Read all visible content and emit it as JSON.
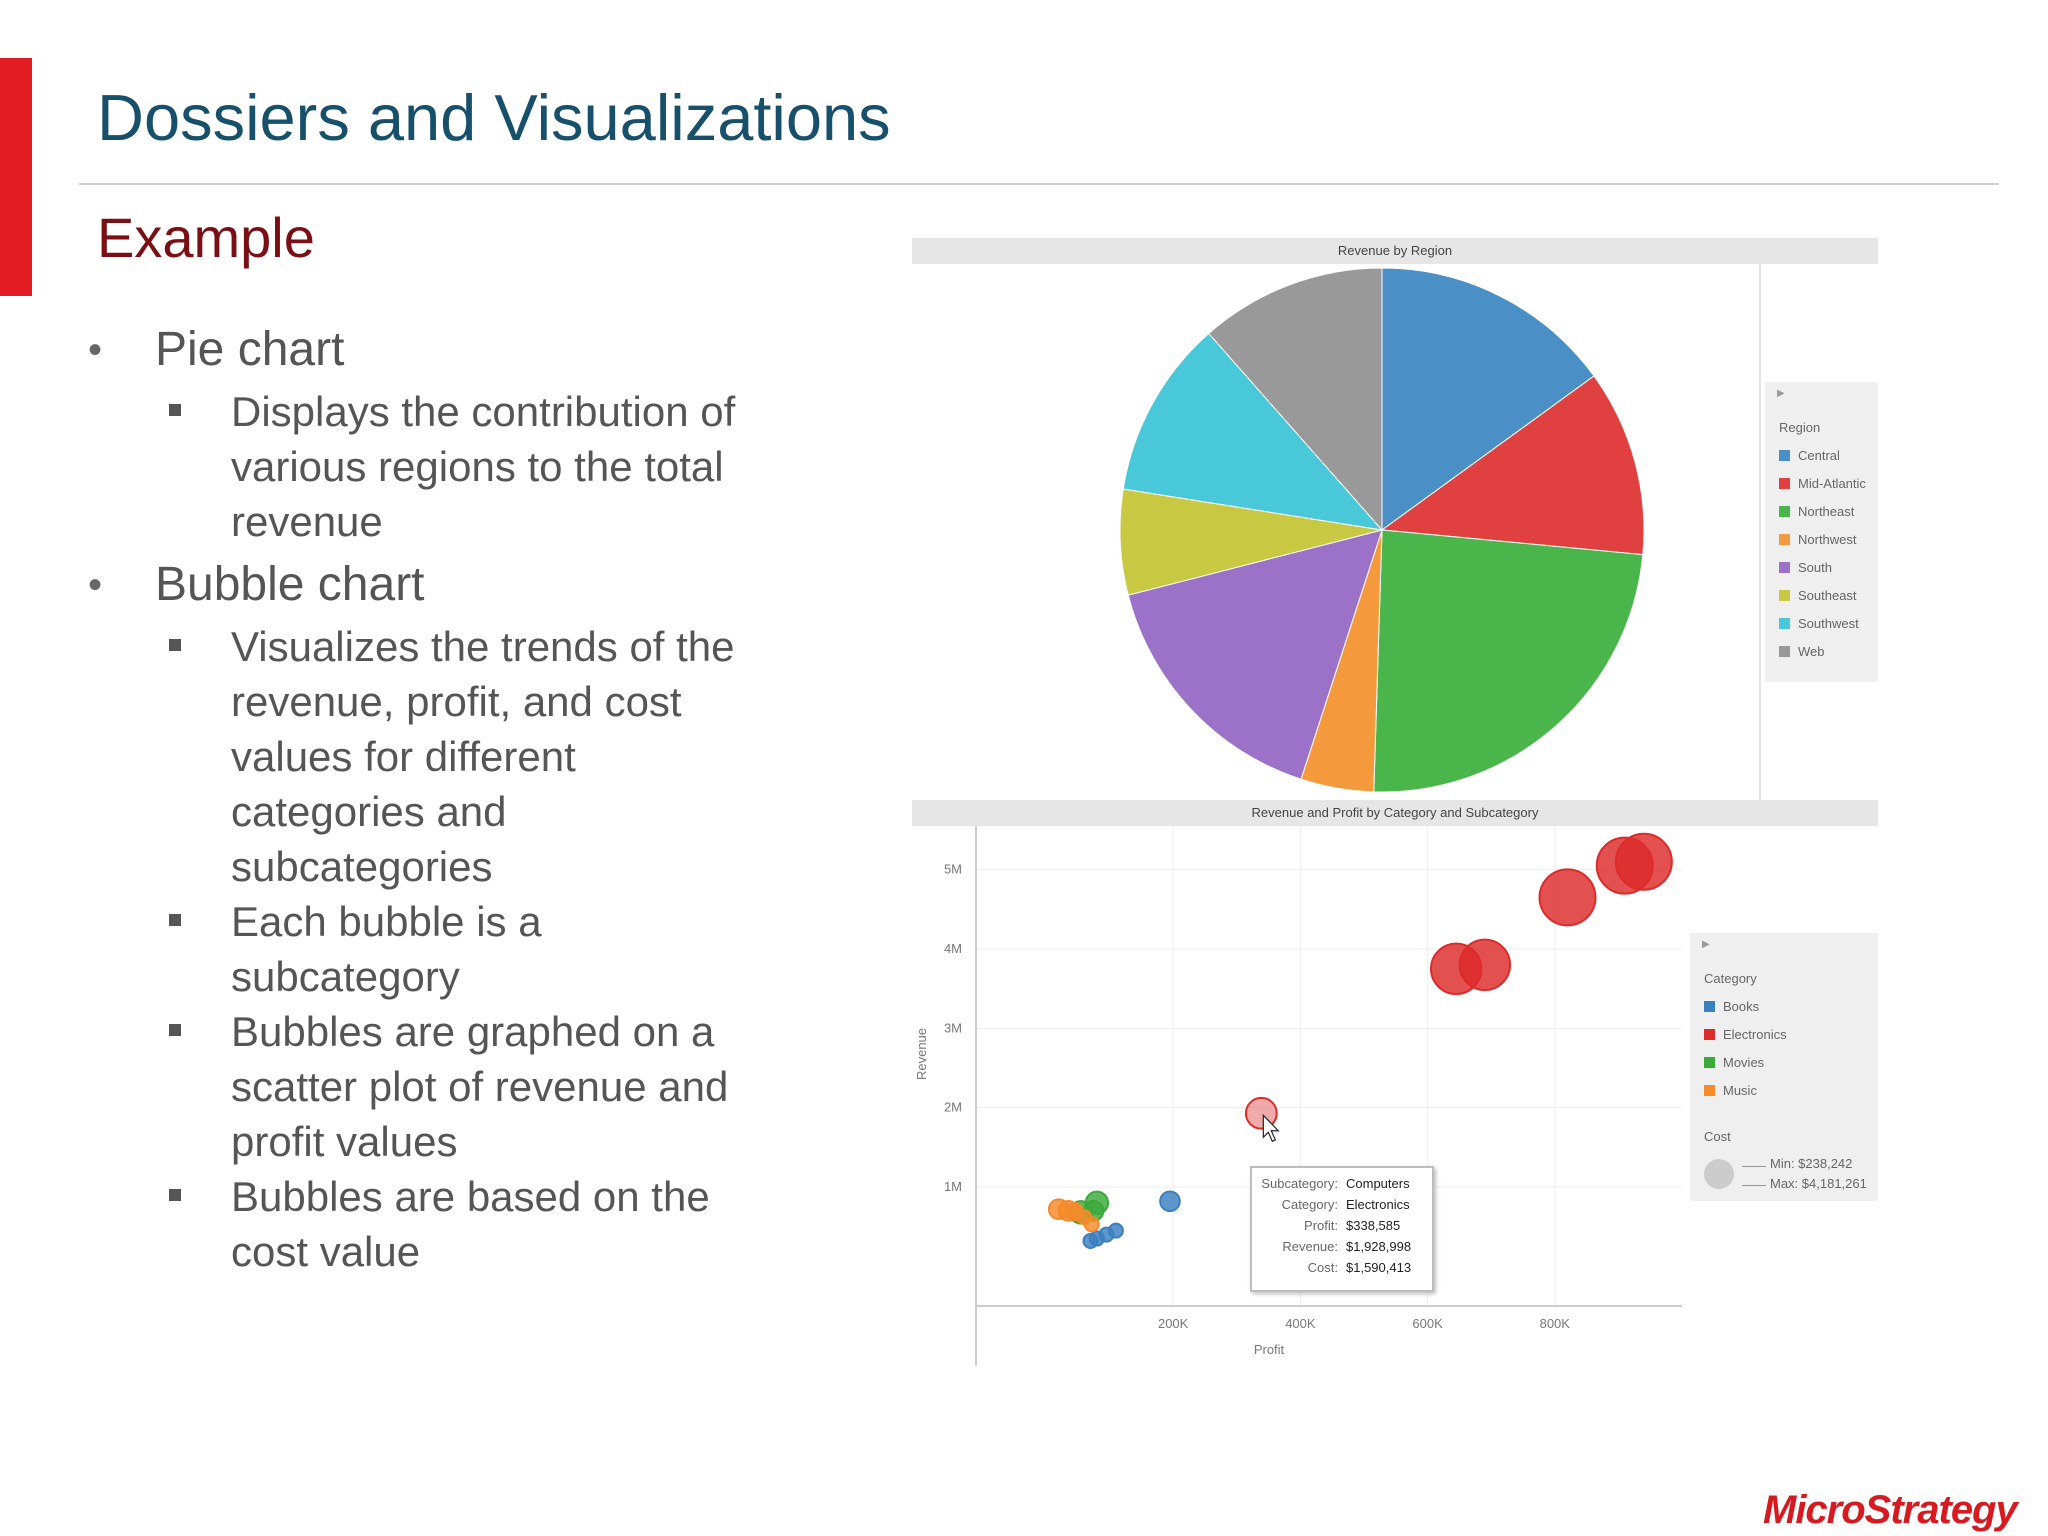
{
  "slide": {
    "title": "Dossiers and Visualizations",
    "subtitle": "Example",
    "accent_color": "#e31b23",
    "title_color": "#17506b",
    "subtitle_color": "#7a0f16"
  },
  "bullets": [
    {
      "text": "Pie chart",
      "subs": [
        "Displays the contribution of",
        "various regions to the total",
        "revenue"
      ]
    },
    {
      "text": "Bubble chart",
      "subs": [
        "Visualizes the trends of the",
        "revenue, profit, and cost",
        "values for different",
        "categories and",
        "subcategories"
      ]
    }
  ],
  "bullets_extra": [
    [
      "Each bubble is a",
      "subcategory"
    ],
    [
      "Bubbles are graphed on a",
      "scatter plot of revenue and",
      "profit values"
    ],
    [
      "Bubbles are based on the",
      "cost value"
    ]
  ],
  "chart_data": [
    {
      "type": "pie",
      "title": "Revenue by Region",
      "legend_title": "Region",
      "legend_placement": "right",
      "categories": [
        "Central",
        "Mid-Atlantic",
        "Northeast",
        "Northwest",
        "South",
        "Southeast",
        "Southwest",
        "Web"
      ],
      "values": [
        15.0,
        11.5,
        24.0,
        4.5,
        16.0,
        6.5,
        11.0,
        11.5
      ],
      "colors": [
        "#4a90c7",
        "#e04040",
        "#4ab54a",
        "#f59a3c",
        "#9b72c7",
        "#c8c842",
        "#48c8d8",
        "#999999"
      ]
    },
    {
      "type": "scatter",
      "title": "Revenue and Profit by Category and Subcategory",
      "xlabel": "Profit",
      "ylabel": "Revenue",
      "xlim": [
        -110000,
        1000000
      ],
      "ylim": [
        -500000,
        5550000
      ],
      "x_ticks": [
        200000,
        400000,
        600000,
        800000
      ],
      "x_tick_labels": [
        "200K",
        "400K",
        "600K",
        "800K"
      ],
      "y_ticks": [
        1000000,
        2000000,
        3000000,
        4000000,
        5000000
      ],
      "y_tick_labels": [
        "1M",
        "2M",
        "3M",
        "4M",
        "5M"
      ],
      "grid": true,
      "legend_title": "Category",
      "legend_placement": "right",
      "categories": [
        "Books",
        "Electronics",
        "Movies",
        "Music"
      ],
      "colors": {
        "Books": "#3a7fc0",
        "Electronics": "#dd2a2a",
        "Movies": "#3aaa3a",
        "Music": "#f58a2a"
      },
      "size_legend": {
        "title": "Cost",
        "min_label": "Min: $238,242",
        "max_label": "Max: $4,181,261"
      },
      "points": [
        {
          "category": "Electronics",
          "x": 940000,
          "y": 5100000,
          "size": 20
        },
        {
          "category": "Electronics",
          "x": 910000,
          "y": 5050000,
          "size": 20
        },
        {
          "category": "Electronics",
          "x": 820000,
          "y": 4650000,
          "size": 20
        },
        {
          "category": "Electronics",
          "x": 690000,
          "y": 3800000,
          "size": 18
        },
        {
          "category": "Electronics",
          "x": 645000,
          "y": 3750000,
          "size": 18
        },
        {
          "category": "Electronics",
          "x": 338585,
          "y": 1928998,
          "size": 11,
          "highlighted": true
        },
        {
          "category": "Books",
          "x": 195000,
          "y": 820000,
          "size": 7
        },
        {
          "category": "Books",
          "x": 110000,
          "y": 450000,
          "size": 5
        },
        {
          "category": "Books",
          "x": 95000,
          "y": 400000,
          "size": 5
        },
        {
          "category": "Books",
          "x": 80000,
          "y": 350000,
          "size": 5
        },
        {
          "category": "Books",
          "x": 70000,
          "y": 320000,
          "size": 5
        },
        {
          "category": "Movies",
          "x": 80000,
          "y": 800000,
          "size": 8
        },
        {
          "category": "Movies",
          "x": 55000,
          "y": 680000,
          "size": 8
        },
        {
          "category": "Movies",
          "x": 75000,
          "y": 700000,
          "size": 7
        },
        {
          "category": "Music",
          "x": 20000,
          "y": 720000,
          "size": 7
        },
        {
          "category": "Music",
          "x": 35000,
          "y": 700000,
          "size": 7
        },
        {
          "category": "Music",
          "x": 45000,
          "y": 690000,
          "size": 6
        },
        {
          "category": "Music",
          "x": 60000,
          "y": 620000,
          "size": 5
        },
        {
          "category": "Music",
          "x": 72000,
          "y": 530000,
          "size": 5
        }
      ],
      "tooltip": [
        {
          "key": "Subcategory:",
          "value": "Computers"
        },
        {
          "key": "Category:",
          "value": "Electronics"
        },
        {
          "key": "Profit:",
          "value": "$338,585"
        },
        {
          "key": "Revenue:",
          "value": "$1,928,998"
        },
        {
          "key": "Cost:",
          "value": "$1,590,413"
        }
      ]
    }
  ],
  "logo": {
    "text": "MicroStrategy"
  }
}
